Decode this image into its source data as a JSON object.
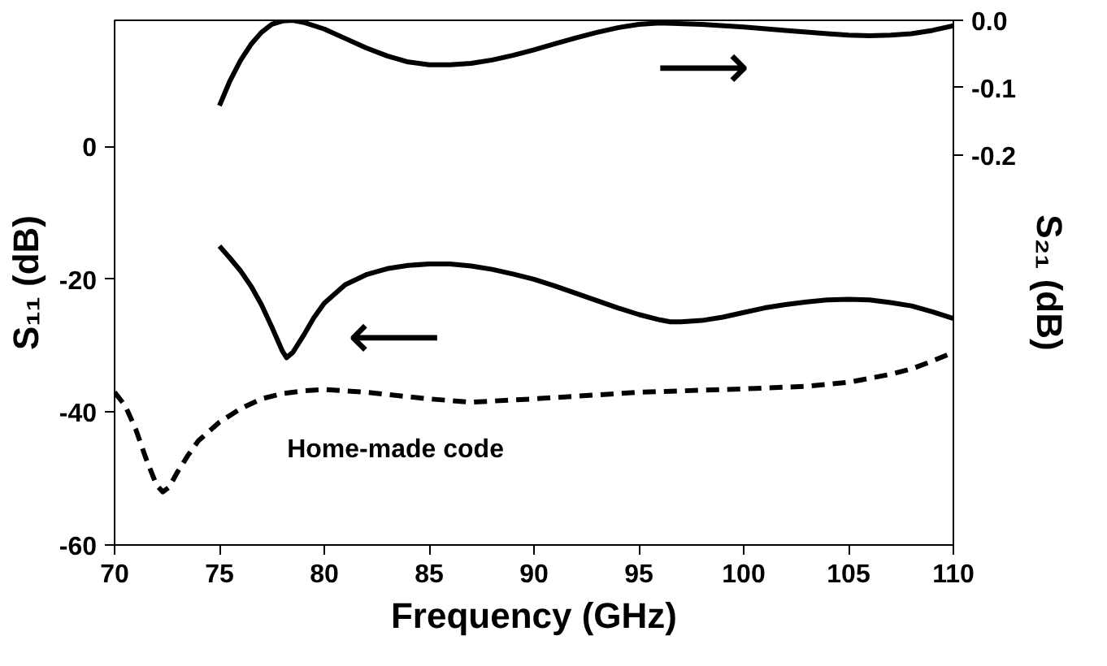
{
  "chart_data": {
    "type": "line",
    "xlabel": "Frequency (GHz)",
    "ylabel": "S₁₁ (dB)",
    "y2label": "S₂₁ (dB)",
    "xlim": [
      70,
      110
    ],
    "xticks": [
      70,
      75,
      80,
      85,
      90,
      95,
      100,
      105,
      110
    ],
    "ylim": [
      -60,
      19
    ],
    "yticks": [
      -60,
      -40,
      -20,
      0
    ],
    "y2lim": [
      -0.78,
      0
    ],
    "y2ticks": [
      {
        "value": -0.2,
        "label": "-0.2"
      },
      {
        "value": -0.1,
        "label": "-0.1"
      },
      {
        "value": 0,
        "label": "0.0"
      }
    ],
    "annotations": [
      "⟵",
      "⟶"
    ],
    "grid": false,
    "legend": false,
    "marker": "none",
    "series": [
      {
        "color": "#000000",
        "line_style": "solid",
        "x": [
          75,
          75.5,
          76,
          76.5,
          77,
          77.5,
          78,
          78.2,
          78.5,
          79,
          79.5,
          80,
          81,
          82,
          83,
          84,
          85,
          86,
          87,
          88,
          89,
          90,
          91,
          92,
          93,
          94,
          95,
          96,
          96.5,
          97,
          98,
          99,
          100,
          101,
          102,
          103,
          104,
          105,
          106,
          107,
          108,
          109,
          110
        ],
        "values": [
          -15,
          -16.8,
          -18.7,
          -21,
          -23.8,
          -27.2,
          -30.8,
          -31.8,
          -31,
          -28.5,
          -25.8,
          -23.6,
          -20.8,
          -19.3,
          -18.4,
          -17.9,
          -17.7,
          -17.7,
          -18,
          -18.5,
          -19.2,
          -20,
          -21,
          -22.1,
          -23.2,
          -24.3,
          -25.3,
          -26.1,
          -26.4,
          -26.4,
          -26.2,
          -25.7,
          -25,
          -24.3,
          -23.8,
          -23.4,
          -23.1,
          -23,
          -23.1,
          -23.5,
          -24,
          -24.9,
          -25.9
        ]
      },
      {
        "name": "Home-made code",
        "color": "#000000",
        "line_style": "dashed",
        "x": [
          70,
          70.5,
          71,
          71.5,
          72,
          72.3,
          72.6,
          73,
          73.5,
          74,
          75,
          76,
          77,
          78,
          79,
          80,
          82,
          85,
          87,
          90,
          95,
          100,
          103,
          105,
          107,
          108,
          109,
          110
        ],
        "values": [
          -37,
          -39,
          -42.5,
          -47,
          -51,
          -52,
          -51.3,
          -49,
          -46.5,
          -44.3,
          -41.5,
          -39.5,
          -38,
          -37.2,
          -36.8,
          -36.6,
          -37,
          -38,
          -38.5,
          -38,
          -37,
          -36.5,
          -36.1,
          -35.5,
          -34.3,
          -33.5,
          -32.3,
          -31
        ]
      },
      {
        "color": "#000000",
        "line_style": "solid",
        "axis": "y2",
        "x": [
          75,
          75.5,
          76,
          76.5,
          77,
          77.5,
          78,
          78.5,
          79,
          80,
          81,
          82,
          83,
          84,
          85,
          86,
          87,
          88,
          89,
          90,
          91,
          92,
          93,
          94,
          95,
          96,
          98,
          100,
          102,
          104,
          105,
          106,
          107,
          108,
          109,
          110
        ],
        "values": [
          -0.127,
          -0.09,
          -0.06,
          -0.036,
          -0.018,
          -0.006,
          -0.001,
          0,
          -0.003,
          -0.013,
          -0.027,
          -0.041,
          -0.053,
          -0.062,
          -0.066,
          -0.066,
          -0.064,
          -0.059,
          -0.052,
          -0.044,
          -0.035,
          -0.026,
          -0.018,
          -0.011,
          -0.006,
          -0.004,
          -0.006,
          -0.01,
          -0.015,
          -0.02,
          -0.022,
          -0.023,
          -0.022,
          -0.02,
          -0.015,
          -0.008
        ]
      }
    ]
  }
}
